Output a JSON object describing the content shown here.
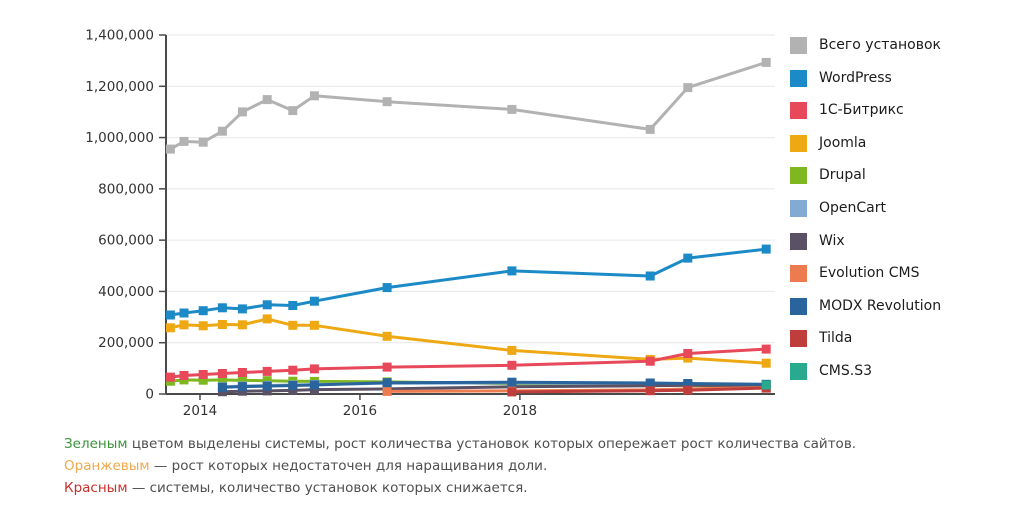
{
  "chart_data": {
    "type": "line",
    "title": "",
    "xlabel": "",
    "ylabel": "",
    "x": [
      2013.63,
      2013.8,
      2014.04,
      2014.28,
      2014.53,
      2014.84,
      2015.16,
      2015.43,
      2016.34,
      2017.9,
      2019.63,
      2020.1,
      2021.08
    ],
    "series": [
      {
        "name": "Всего установок",
        "slug": "total-installs",
        "color": "#b2b2b2",
        "values": [
          955000,
          985000,
          982000,
          1025000,
          1100000,
          1148000,
          1105000,
          1163000,
          1140000,
          1110000,
          1032000,
          1195000,
          1293000
        ]
      },
      {
        "name": "WordPress",
        "slug": "wordpress",
        "color": "#1b8ac6",
        "values": [
          308000,
          316000,
          325000,
          336000,
          332000,
          348000,
          345000,
          362000,
          415000,
          480000,
          460000,
          530000,
          565000
        ]
      },
      {
        "name": "1С-Битрикс",
        "slug": "1c-bitrix",
        "color": "#e8495a",
        "values": [
          66000,
          72000,
          76000,
          80000,
          84000,
          88000,
          93000,
          98000,
          105000,
          112000,
          128000,
          158000,
          175000
        ]
      },
      {
        "name": "Joomla",
        "slug": "joomla",
        "color": "#eda813",
        "values": [
          258000,
          270000,
          266000,
          271000,
          270000,
          293000,
          268000,
          268000,
          225000,
          170000,
          135000,
          140000,
          120000
        ]
      },
      {
        "name": "Drupal",
        "slug": "drupal",
        "color": "#7eb71f",
        "values": [
          50000,
          55000,
          54000,
          55000,
          53000,
          52000,
          50000,
          49000,
          47000,
          40000,
          36000,
          34000,
          31000
        ]
      },
      {
        "name": "OpenCart",
        "slug": "opencart",
        "color": "#82aad2",
        "values": [
          null,
          null,
          null,
          28000,
          31000,
          33000,
          35000,
          37000,
          42000,
          43000,
          40000,
          38000,
          36000
        ]
      },
      {
        "name": "Wix",
        "slug": "wix",
        "color": "#5a5165",
        "values": [
          null,
          null,
          null,
          9000,
          11000,
          12000,
          14000,
          17000,
          20000,
          28000,
          32000,
          34000,
          33000
        ]
      },
      {
        "name": "Evolution CMS",
        "slug": "evolution-cms",
        "color": "#ec7c4f",
        "values": [
          null,
          null,
          null,
          null,
          null,
          null,
          null,
          null,
          10000,
          12000,
          16000,
          20000,
          25000
        ]
      },
      {
        "name": "MODX Revolution",
        "slug": "modx-revolution",
        "color": "#2a649c",
        "values": [
          null,
          null,
          null,
          26000,
          29000,
          31000,
          33000,
          35000,
          44000,
          46000,
          43000,
          41000,
          38000
        ]
      },
      {
        "name": "Tilda",
        "slug": "tilda",
        "color": "#bf3e3c",
        "values": [
          null,
          null,
          null,
          null,
          null,
          null,
          null,
          null,
          null,
          8000,
          13000,
          15000,
          23000
        ]
      },
      {
        "name": "CMS.S3",
        "slug": "cms-s3",
        "color": "#29a98e",
        "values": [
          null,
          null,
          null,
          null,
          null,
          null,
          null,
          null,
          null,
          null,
          null,
          null,
          35000
        ]
      }
    ],
    "xticks": [
      2014,
      2016,
      2018
    ],
    "yticks": [
      0,
      200000,
      400000,
      600000,
      800000,
      1000000,
      1200000,
      1400000
    ],
    "ytick_labels": [
      "0",
      "200,000",
      "400,000",
      "600,000",
      "800,000",
      "1,000,000",
      "1,200,000",
      "1,400,000"
    ],
    "xlim": [
      2013.575,
      2021.19
    ],
    "ylim": [
      0,
      1400000
    ],
    "grid": "horizontal",
    "legend_position": "right",
    "z_order": [
      0,
      1,
      3,
      4,
      5,
      6,
      7,
      8,
      9,
      2,
      10
    ],
    "colors": {
      "gridline": "#e7e7e7",
      "axis": "#4a4a4a",
      "tick_label": "#333333"
    }
  },
  "notes": [
    {
      "lead": "Зеленым",
      "lead_color": "#3c933c",
      "text": " цветом выделены системы, рост количества установок которых опережает рост количества сайтов."
    },
    {
      "lead": "Оранжевым",
      "lead_color": "#f0a94c",
      "text": " — рост которых недостаточен для наращивания доли."
    },
    {
      "lead": "Красным",
      "lead_color": "#c9302c",
      "text": " — системы, количество установок которых снижается."
    }
  ]
}
